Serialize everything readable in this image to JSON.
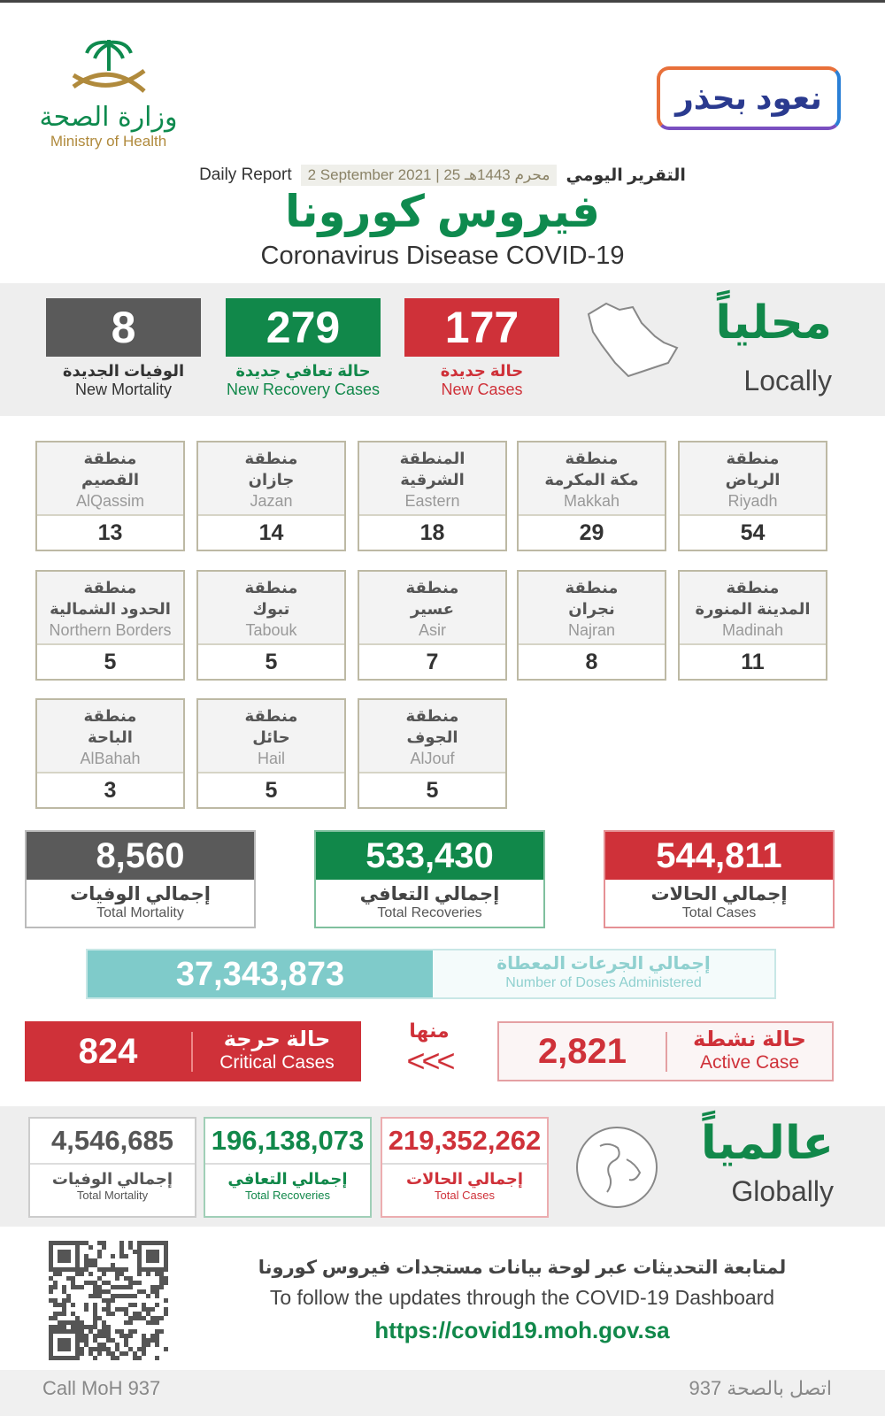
{
  "header": {
    "logo_ar": "وزارة الصحة",
    "logo_en": "Ministry of Health",
    "campaign_badge": "نعود بحذر",
    "daily_report_en": "Daily Report",
    "daily_report_ar": "التقرير اليومي",
    "date": "2 September 2021 | 25 محرم 1443هـ",
    "title_ar": "فيروس كورونا",
    "title_en": "Coronavirus Disease COVID-19"
  },
  "local": {
    "heading_ar": "محلياً",
    "heading_en": "Locally",
    "stats": [
      {
        "value": "8",
        "label_ar": "الوفيات الجديدة",
        "label_en": "New Mortality",
        "color": "#5a5a5a"
      },
      {
        "value": "279",
        "label_ar": "حالة تعافي جديدة",
        "label_en": "New Recovery Cases",
        "color": "#11884a"
      },
      {
        "value": "177",
        "label_ar": "حالة جديدة",
        "label_en": "New Cases",
        "color": "#cf3139"
      }
    ]
  },
  "regions": [
    {
      "ar1": "منطقة",
      "ar2": "الرياض",
      "en": "Riyadh",
      "value": "54"
    },
    {
      "ar1": "منطقة",
      "ar2": "مكة المكرمة",
      "en": "Makkah",
      "value": "29"
    },
    {
      "ar1": "المنطقة",
      "ar2": "الشرقية",
      "en": "Eastern",
      "value": "18"
    },
    {
      "ar1": "منطقة",
      "ar2": "جازان",
      "en": "Jazan",
      "value": "14"
    },
    {
      "ar1": "منطقة",
      "ar2": "القصيم",
      "en": "AlQassim",
      "value": "13"
    },
    {
      "ar1": "منطقة",
      "ar2": "المدينة المنورة",
      "en": "Madinah",
      "value": "11"
    },
    {
      "ar1": "منطقة",
      "ar2": "نجران",
      "en": "Najran",
      "value": "8"
    },
    {
      "ar1": "منطقة",
      "ar2": "عسير",
      "en": "Asir",
      "value": "7"
    },
    {
      "ar1": "منطقة",
      "ar2": "تبوك",
      "en": "Tabouk",
      "value": "5"
    },
    {
      "ar1": "منطقة",
      "ar2": "الحدود الشمالية",
      "en": "Northern Borders",
      "value": "5"
    },
    {
      "ar1": "منطقة",
      "ar2": "الجوف",
      "en": "AlJouf",
      "value": "5"
    },
    {
      "ar1": "منطقة",
      "ar2": "حائل",
      "en": "Hail",
      "value": "5"
    },
    {
      "ar1": "منطقة",
      "ar2": "الباحة",
      "en": "AlBahah",
      "value": "3"
    }
  ],
  "totals": [
    {
      "value": "8,560",
      "label_ar": "إجمالي الوفيات",
      "label_en": "Total Mortality",
      "color": "#5a5a5a"
    },
    {
      "value": "533,430",
      "label_ar": "إجمالي التعافي",
      "label_en": "Total Recoveries",
      "color": "#11884a"
    },
    {
      "value": "544,811",
      "label_ar": "إجمالي الحالات",
      "label_en": "Total Cases",
      "color": "#cf3139"
    }
  ],
  "doses": {
    "value": "37,343,873",
    "label_ar": "إجمالي الجرعات المعطاة",
    "label_en": "Number of Doses Administered"
  },
  "critical": {
    "value": "824",
    "label_ar": "حالة حرجة",
    "label_en": "Critical Cases"
  },
  "of_which": {
    "label_ar": "منها",
    "arrows": "<<<"
  },
  "active": {
    "value": "2,821",
    "label_ar": "حالة نشطة",
    "label_en": "Active Case"
  },
  "global": {
    "heading_ar": "عالمياً",
    "heading_en": "Globally",
    "stats": [
      {
        "value": "4,546,685",
        "label_ar": "إجمالي الوفيات",
        "label_en": "Total Mortality",
        "color": "#555555"
      },
      {
        "value": "196,138,073",
        "label_ar": "إجمالي التعافي",
        "label_en": "Total Recoveries",
        "color": "#11884a"
      },
      {
        "value": "219,352,262",
        "label_ar": "إجمالي الحالات",
        "label_en": "Total Cases",
        "color": "#cf3139"
      }
    ]
  },
  "footer": {
    "follow_ar": "لمتابعة التحديثات عبر لوحة بيانات مستجدات فيروس كورونا",
    "follow_en": "To follow the updates through the COVID-19 Dashboard",
    "url": "https://covid19.moh.gov.sa",
    "call_en": "Call MoH 937",
    "call_ar": "اتصل بالصحة 937"
  }
}
